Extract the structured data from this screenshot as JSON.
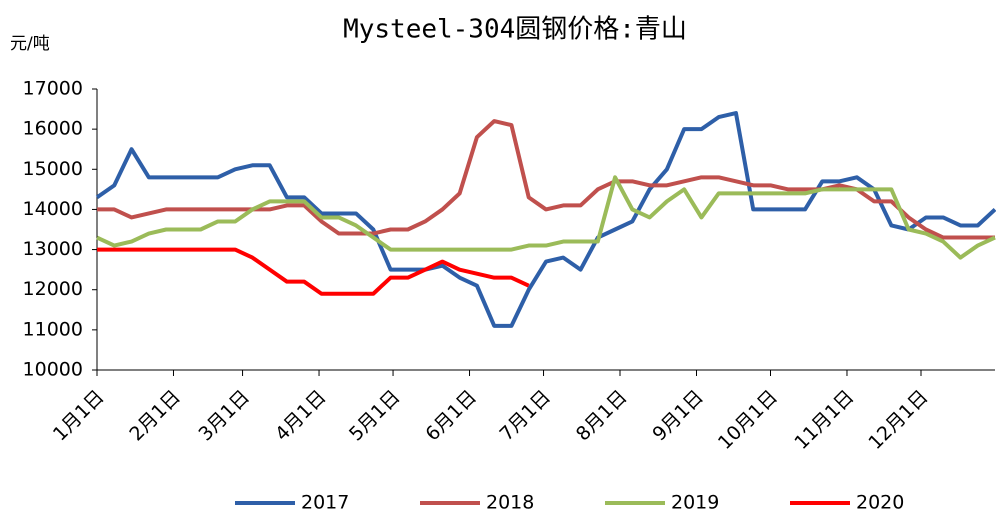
{
  "chart_data": {
    "type": "line",
    "title": "Mysteel-304圆钢价格:青山",
    "y_label": "元/吨",
    "x": [
      0,
      7,
      14,
      21,
      28,
      35,
      42,
      49,
      56,
      63,
      70,
      77,
      84,
      91,
      98,
      105,
      112,
      119,
      126,
      133,
      140,
      147,
      154,
      161,
      168,
      175,
      182,
      189,
      196,
      203,
      210,
      217,
      224,
      231,
      238,
      245,
      252,
      259,
      266,
      273,
      280,
      287,
      294,
      301,
      308,
      315,
      322,
      329,
      336,
      343,
      350,
      357,
      364
    ],
    "xlim": [
      0,
      364
    ],
    "xticks": [
      {
        "value": 0,
        "label": "1月1日"
      },
      {
        "value": 31,
        "label": "2月1日"
      },
      {
        "value": 59,
        "label": "3月1日"
      },
      {
        "value": 90,
        "label": "4月1日"
      },
      {
        "value": 120,
        "label": "5月1日"
      },
      {
        "value": 151,
        "label": "6月1日"
      },
      {
        "value": 181,
        "label": "7月1日"
      },
      {
        "value": 212,
        "label": "8月1日"
      },
      {
        "value": 243,
        "label": "9月1日"
      },
      {
        "value": 273,
        "label": "10月1日"
      },
      {
        "value": 304,
        "label": "11月1日"
      },
      {
        "value": 334,
        "label": "12月1日"
      }
    ],
    "ylim": [
      10000,
      17000
    ],
    "yticks": [
      10000,
      11000,
      12000,
      13000,
      14000,
      15000,
      16000,
      17000
    ],
    "grid": false,
    "legend": "bottom",
    "series": [
      {
        "name": "2017",
        "color": "#2e5fa8",
        "values": [
          14300,
          14600,
          15500,
          14800,
          14800,
          14800,
          14800,
          14800,
          15000,
          15100,
          15100,
          14300,
          14300,
          13900,
          13900,
          13900,
          13500,
          12500,
          12500,
          12500,
          12600,
          12300,
          12100,
          11100,
          11100,
          12000,
          12700,
          12800,
          12500,
          13300,
          13500,
          13700,
          14500,
          15000,
          16000,
          16000,
          16300,
          16400,
          14000,
          14000,
          14000,
          14000,
          14700,
          14700,
          14800,
          14500,
          13600,
          13500,
          13800,
          13800,
          13600,
          13600,
          14000
        ]
      },
      {
        "name": "2018",
        "color": "#c0504d",
        "values": [
          14000,
          14000,
          13800,
          13900,
          14000,
          14000,
          14000,
          14000,
          14000,
          14000,
          14000,
          14100,
          14100,
          13700,
          13400,
          13400,
          13400,
          13500,
          13500,
          13700,
          14000,
          14400,
          15800,
          16200,
          16100,
          14300,
          14000,
          14100,
          14100,
          14500,
          14700,
          14700,
          14600,
          14600,
          14700,
          14800,
          14800,
          14700,
          14600,
          14600,
          14500,
          14500,
          14500,
          14600,
          14500,
          14200,
          14200,
          13800,
          13500,
          13300,
          13300,
          13300,
          13300
        ]
      },
      {
        "name": "2019",
        "color": "#9bbb59",
        "values": [
          13300,
          13100,
          13200,
          13400,
          13500,
          13500,
          13500,
          13700,
          13700,
          14000,
          14200,
          14200,
          14200,
          13800,
          13800,
          13600,
          13300,
          13000,
          13000,
          13000,
          13000,
          13000,
          13000,
          13000,
          13000,
          13100,
          13100,
          13200,
          13200,
          13200,
          14800,
          14000,
          13800,
          14200,
          14500,
          13800,
          14400,
          14400,
          14400,
          14400,
          14400,
          14400,
          14500,
          14500,
          14500,
          14500,
          14500,
          13500,
          13400,
          13200,
          12800,
          13100,
          13300
        ]
      },
      {
        "name": "2020",
        "color": "#ff0000",
        "values": [
          13000,
          13000,
          13000,
          13000,
          13000,
          13000,
          13000,
          13000,
          13000,
          12800,
          12500,
          12200,
          12200,
          11900,
          11900,
          11900,
          11900,
          12300,
          12300,
          12500,
          12700,
          12500,
          12400,
          12300,
          12300,
          12100,
          null,
          null,
          null,
          null,
          null,
          null,
          null,
          null,
          null,
          null,
          null,
          null,
          null,
          null,
          null,
          null,
          null,
          null,
          null,
          null,
          null,
          null,
          null,
          null,
          null,
          null,
          null
        ]
      }
    ]
  }
}
